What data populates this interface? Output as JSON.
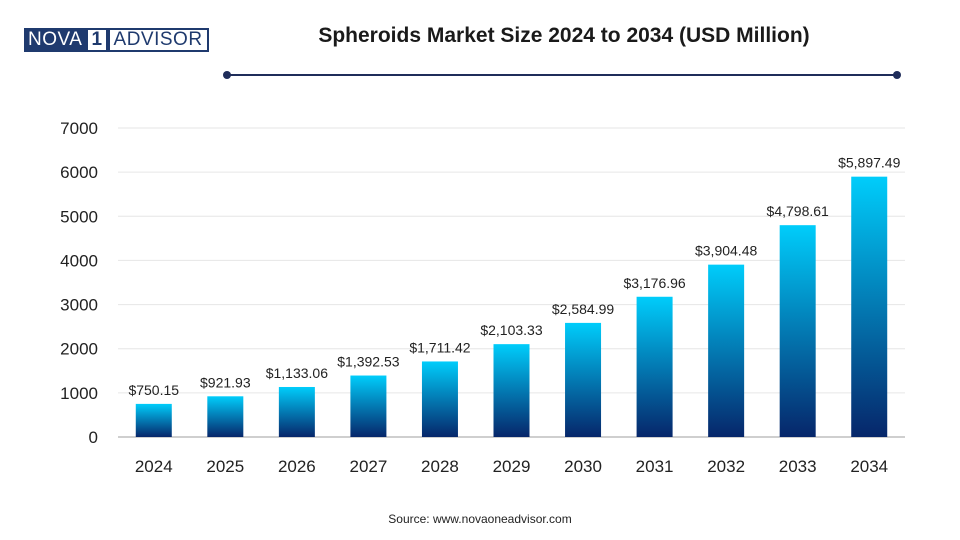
{
  "logo": {
    "left": "NOVA",
    "mid": "1",
    "right": "ADVISOR"
  },
  "source": "Source: www.novaoneadvisor.com",
  "colors": {
    "bar_top": "#00cdfb",
    "bar_bottom": "#06266a",
    "rule": "#1f2d5a",
    "grid": "#e6e6e6"
  },
  "chart_data": {
    "type": "bar",
    "title": "Spheroids Market Size 2024 to 2034 (USD Million)",
    "xlabel": "",
    "ylabel": "",
    "categories": [
      "2024",
      "2025",
      "2026",
      "2027",
      "2028",
      "2029",
      "2030",
      "2031",
      "2032",
      "2033",
      "2034"
    ],
    "values": [
      750.15,
      921.93,
      1133.06,
      1392.53,
      1711.42,
      2103.33,
      2584.99,
      3176.96,
      3904.48,
      4798.61,
      5897.49
    ],
    "data_labels": [
      "$750.15",
      "$921.93",
      "$1,133.06",
      "$1,392.53",
      "$1,711.42",
      "$2,103.33",
      "$2,584.99",
      "$3,176.96",
      "$3,904.48",
      "$4,798.61",
      "$5,897.49"
    ],
    "ylim": [
      0,
      7000
    ],
    "yticks": [
      "0",
      "1000",
      "2000",
      "3000",
      "4000",
      "5000",
      "6000",
      "7000"
    ],
    "grid": true,
    "legend": "none"
  }
}
